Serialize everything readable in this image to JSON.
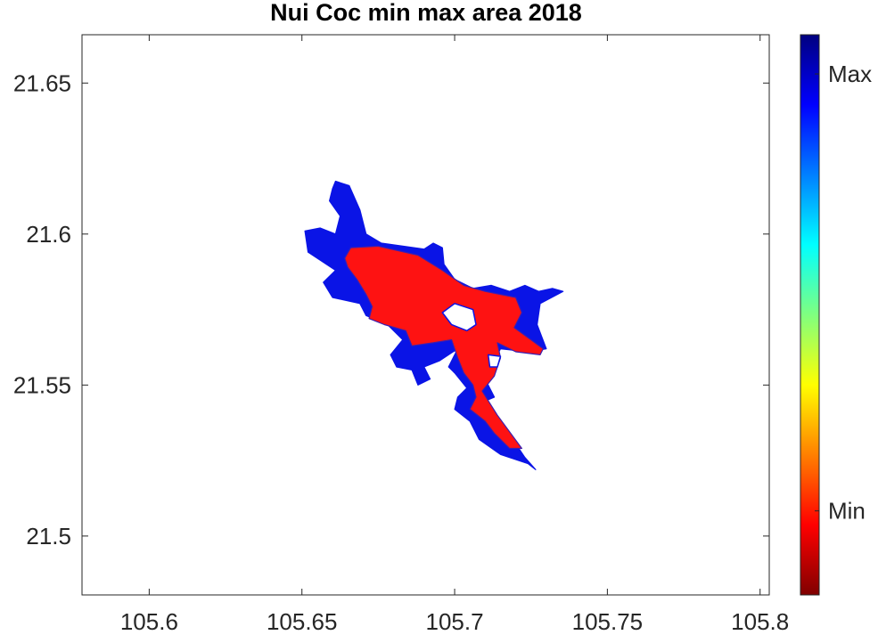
{
  "chart_data": {
    "type": "heatmap",
    "title": "Nui Coc min max area 2018",
    "xlim": [
      105.578,
      105.803
    ],
    "ylim": [
      21.4805,
      21.666
    ],
    "x_ticks": [
      105.6,
      105.65,
      105.7,
      105.75,
      105.8
    ],
    "x_tick_labels": [
      "105.6",
      "105.65",
      "105.7",
      "105.75",
      "105.8"
    ],
    "y_ticks": [
      21.5,
      21.55,
      21.6,
      21.65
    ],
    "y_tick_labels": [
      "21.5",
      "21.55",
      "21.6",
      "21.65"
    ],
    "grid": false,
    "colormap": "jet",
    "colorbar": {
      "position": "right",
      "labels": [
        {
          "text": "Max",
          "level": 0.93
        },
        {
          "text": "Min",
          "level": 0.15
        }
      ]
    },
    "series": [
      {
        "name": "Max",
        "color": "#0a14e6",
        "polygon": [
          [
            105.661,
            21.6175
          ],
          [
            105.6655,
            21.616
          ],
          [
            105.669,
            21.608
          ],
          [
            105.671,
            21.6
          ],
          [
            105.676,
            21.597
          ],
          [
            105.69,
            21.595
          ],
          [
            105.693,
            21.597
          ],
          [
            105.696,
            21.5955
          ],
          [
            105.6965,
            21.59
          ],
          [
            105.7,
            21.585
          ],
          [
            105.706,
            21.582
          ],
          [
            105.712,
            21.583
          ],
          [
            105.718,
            21.581
          ],
          [
            105.723,
            21.583
          ],
          [
            105.7275,
            21.581
          ],
          [
            105.732,
            21.582
          ],
          [
            105.7355,
            21.581
          ],
          [
            105.728,
            21.577
          ],
          [
            105.727,
            21.57
          ],
          [
            105.73,
            21.562
          ],
          [
            105.724,
            21.561
          ],
          [
            105.715,
            21.562
          ],
          [
            105.71,
            21.552
          ],
          [
            105.713,
            21.546
          ],
          [
            105.706,
            21.543
          ],
          [
            105.715,
            21.538
          ],
          [
            105.723,
            21.526
          ],
          [
            105.7265,
            21.522
          ],
          [
            105.724,
            21.524
          ],
          [
            105.715,
            21.527
          ],
          [
            105.708,
            21.532
          ],
          [
            105.705,
            21.538
          ],
          [
            105.7,
            21.542
          ],
          [
            105.701,
            21.546
          ],
          [
            105.704,
            21.549
          ],
          [
            105.7,
            21.554
          ],
          [
            105.698,
            21.556
          ],
          [
            105.701,
            21.562
          ],
          [
            105.695,
            21.558
          ],
          [
            105.69,
            21.556
          ],
          [
            105.692,
            21.552
          ],
          [
            105.688,
            21.55
          ],
          [
            105.686,
            21.555
          ],
          [
            105.681,
            21.556
          ],
          [
            105.679,
            21.56
          ],
          [
            105.683,
            21.565
          ],
          [
            105.678,
            21.57
          ],
          [
            105.671,
            21.573
          ],
          [
            105.669,
            21.577
          ],
          [
            105.66,
            21.579
          ],
          [
            105.657,
            21.584
          ],
          [
            105.661,
            21.588
          ],
          [
            105.652,
            21.594
          ],
          [
            105.651,
            21.601
          ],
          [
            105.656,
            21.602
          ],
          [
            105.661,
            21.6
          ],
          [
            105.6625,
            21.606
          ],
          [
            105.659,
            21.611
          ],
          [
            105.66,
            21.615
          ]
        ]
      },
      {
        "name": "Min",
        "color": "#fe1212",
        "polygon": [
          [
            105.666,
            21.5955
          ],
          [
            105.675,
            21.596
          ],
          [
            105.688,
            21.593
          ],
          [
            105.696,
            21.588
          ],
          [
            105.703,
            21.583
          ],
          [
            105.71,
            21.581
          ],
          [
            105.72,
            21.579
          ],
          [
            105.722,
            21.574
          ],
          [
            105.7195,
            21.569
          ],
          [
            105.725,
            21.565
          ],
          [
            105.729,
            21.562
          ],
          [
            105.728,
            21.56
          ],
          [
            105.72,
            21.561
          ],
          [
            105.714,
            21.564
          ],
          [
            105.715,
            21.559
          ],
          [
            105.713,
            21.553
          ],
          [
            105.709,
            21.548
          ],
          [
            105.714,
            21.54
          ],
          [
            105.722,
            21.529
          ],
          [
            105.718,
            21.529
          ],
          [
            105.713,
            21.534
          ],
          [
            105.71,
            21.538
          ],
          [
            105.705,
            21.542
          ],
          [
            105.707,
            21.546
          ],
          [
            105.706,
            21.55
          ],
          [
            105.703,
            21.554
          ],
          [
            105.701,
            21.559
          ],
          [
            105.699,
            21.565
          ],
          [
            105.693,
            21.564
          ],
          [
            105.686,
            21.563
          ],
          [
            105.684,
            21.568
          ],
          [
            105.677,
            21.57
          ],
          [
            105.672,
            21.572
          ],
          [
            105.673,
            21.576
          ],
          [
            105.671,
            21.58
          ],
          [
            105.668,
            21.585
          ],
          [
            105.665,
            21.589
          ],
          [
            105.664,
            21.592
          ]
        ]
      },
      {
        "name": "Max hole",
        "color": "#ffffff",
        "polygon": [
          [
            105.7,
            21.577
          ],
          [
            105.706,
            21.575
          ],
          [
            105.707,
            21.57
          ],
          [
            105.704,
            21.568
          ],
          [
            105.699,
            21.57
          ],
          [
            105.696,
            21.574
          ]
        ]
      },
      {
        "name": "Min hole",
        "color": "#ffffff",
        "polygon": [
          [
            105.711,
            21.56
          ],
          [
            105.715,
            21.5595
          ],
          [
            105.714,
            21.556
          ],
          [
            105.7115,
            21.556
          ]
        ]
      }
    ]
  }
}
